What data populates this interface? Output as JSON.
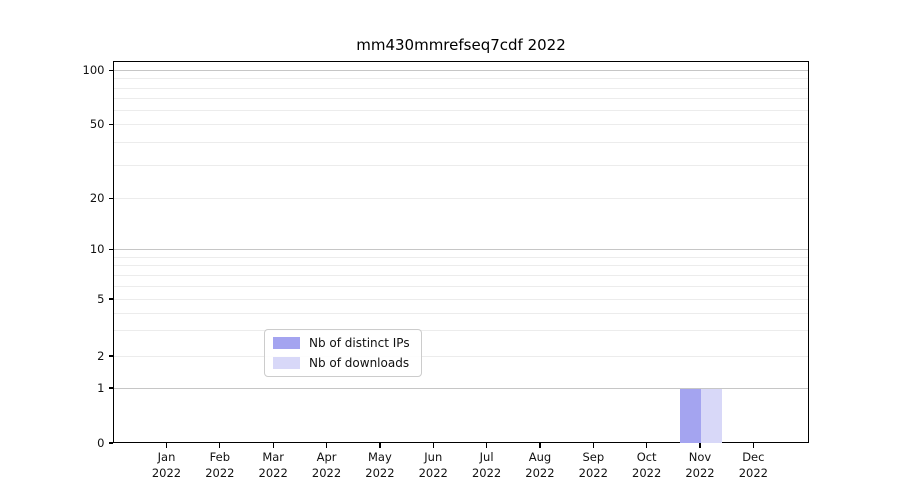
{
  "chart_data": {
    "type": "bar",
    "title": "mm430mmrefseq7cdf 2022",
    "categories": [
      {
        "month": "Jan",
        "year": "2022"
      },
      {
        "month": "Feb",
        "year": "2022"
      },
      {
        "month": "Mar",
        "year": "2022"
      },
      {
        "month": "Apr",
        "year": "2022"
      },
      {
        "month": "May",
        "year": "2022"
      },
      {
        "month": "Jun",
        "year": "2022"
      },
      {
        "month": "Jul",
        "year": "2022"
      },
      {
        "month": "Aug",
        "year": "2022"
      },
      {
        "month": "Sep",
        "year": "2022"
      },
      {
        "month": "Oct",
        "year": "2022"
      },
      {
        "month": "Nov",
        "year": "2022"
      },
      {
        "month": "Dec",
        "year": "2022"
      }
    ],
    "series": [
      {
        "name": "Nb of distinct IPs",
        "color": "#a4a4f0",
        "values": [
          0,
          0,
          0,
          0,
          0,
          0,
          0,
          0,
          0,
          0,
          1,
          0
        ]
      },
      {
        "name": "Nb of downloads",
        "color": "#d8d8f8",
        "values": [
          0,
          0,
          0,
          0,
          0,
          0,
          0,
          0,
          0,
          0,
          1,
          0
        ]
      }
    ],
    "xlabel": "",
    "ylabel": "",
    "y_axis": {
      "scale": "log-like (0 then log decades)",
      "tick_values": [
        0,
        1,
        2,
        5,
        10,
        20,
        50,
        100
      ],
      "minor_grid_values": [
        3,
        4,
        6,
        7,
        8,
        9,
        30,
        40,
        60,
        70,
        80,
        90
      ],
      "emphasized_grid_values": [
        1,
        10,
        100
      ],
      "range": [
        0,
        110
      ]
    },
    "grid": {
      "enabled": true,
      "minor_color": "#ececec",
      "major_color": "#c6c6c6"
    },
    "legend": {
      "position": "lower center",
      "entries": [
        "Nb of distinct IPs",
        "Nb of downloads"
      ]
    }
  }
}
